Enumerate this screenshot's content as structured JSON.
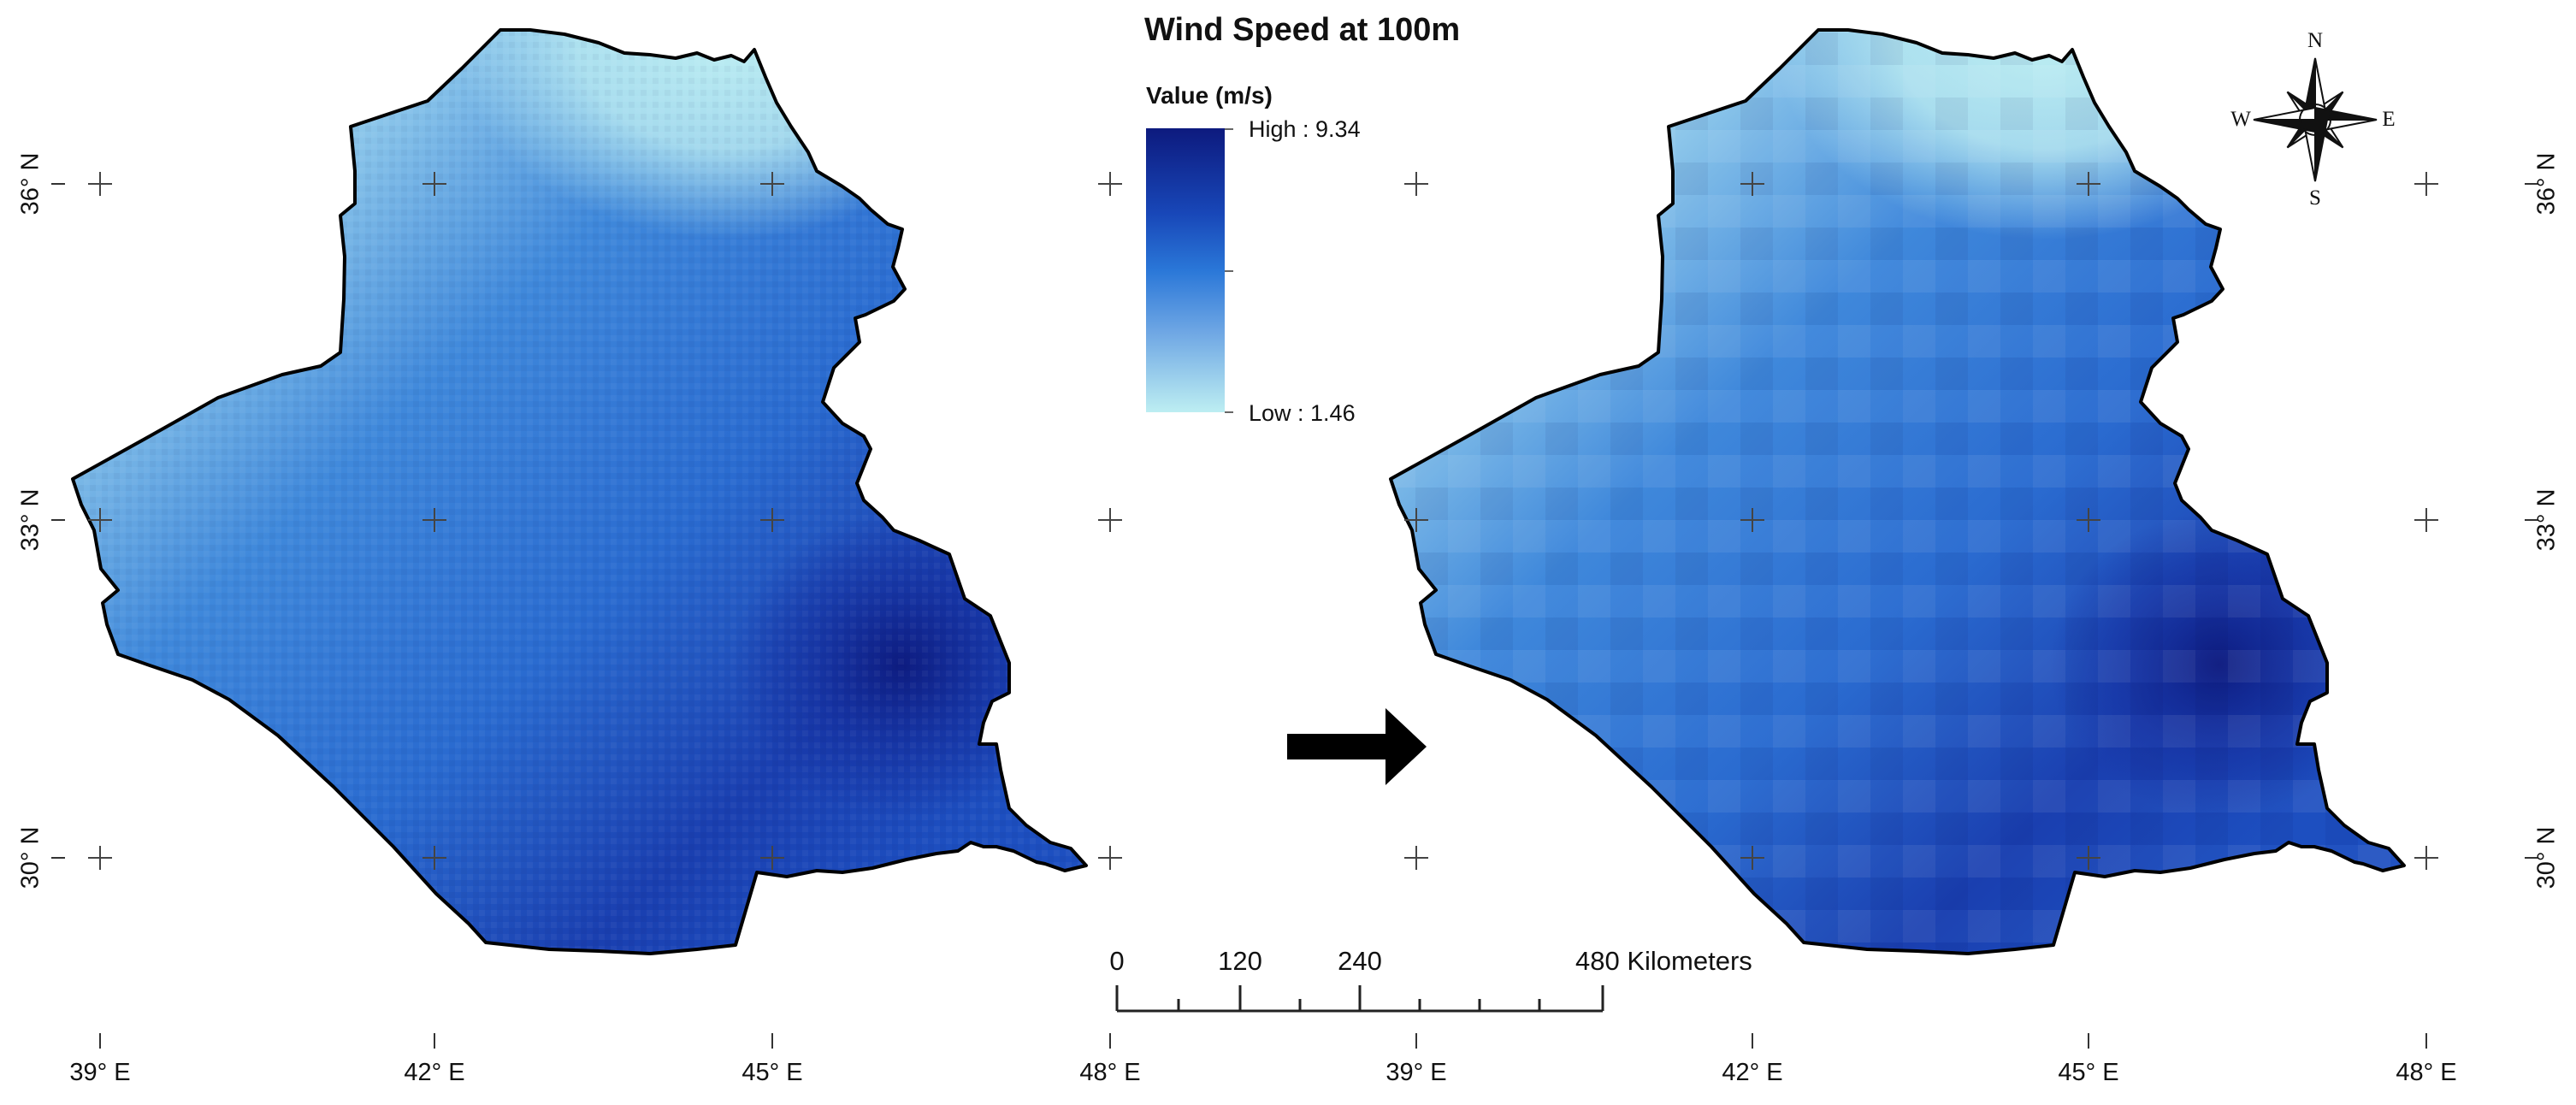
{
  "title": "Wind Speed at 100m",
  "legend": {
    "title": "Value (m/s)",
    "high_label": "High : 9.34",
    "low_label": "Low : 1.46",
    "high_value": 9.34,
    "low_value": 1.46,
    "colors": [
      "#0d1a7e",
      "#1847b8",
      "#2a77d8",
      "#6fa7e4",
      "#bdeef2"
    ]
  },
  "lon_labels": [
    "39° E",
    "42° E",
    "45° E",
    "48° E"
  ],
  "lat_labels": [
    "36° N",
    "33° N",
    "30° N"
  ],
  "scalebar": {
    "ticks": [
      "0",
      "120",
      "240"
    ],
    "end_label": "480 Kilometers"
  },
  "compass": {
    "n": "N",
    "s": "S",
    "e": "E",
    "w": "W"
  },
  "maps": [
    {
      "resolution": "fine"
    },
    {
      "resolution": "coarse"
    }
  ],
  "arrow": "right-arrow-icon"
}
